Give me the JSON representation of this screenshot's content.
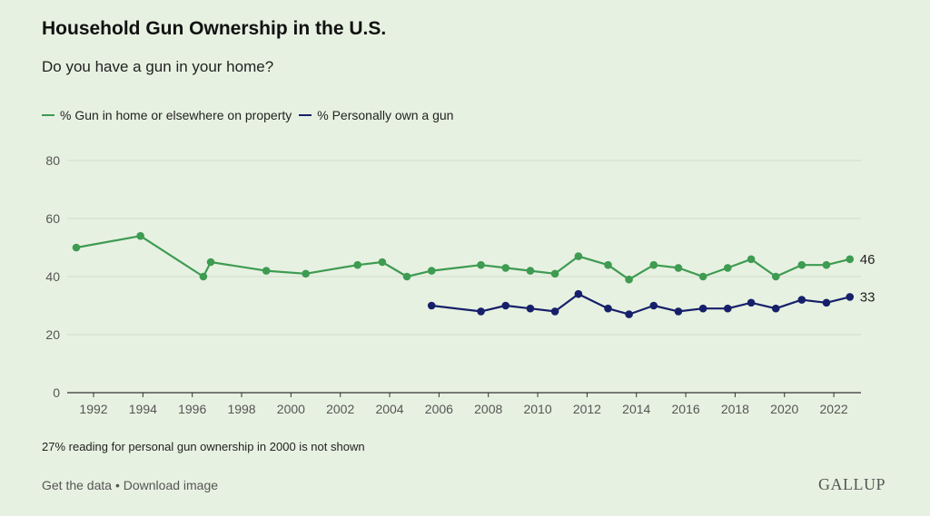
{
  "title": "Household Gun Ownership in the U.S.",
  "subtitle": "Do you have a gun in your home?",
  "note": "27% reading for personal gun ownership in 2000 is not shown",
  "footer": {
    "get_data": "Get the data",
    "separator": " • ",
    "download": "Download image"
  },
  "logo": "GALLUP",
  "chart_data": {
    "type": "line",
    "title": "Household Gun Ownership in the U.S.",
    "xlabel": "",
    "ylabel": "",
    "ylim": [
      0,
      80
    ],
    "yticks": [
      0,
      20,
      40,
      60,
      80
    ],
    "xticks": [
      1992,
      1994,
      1996,
      1998,
      2000,
      2002,
      2004,
      2006,
      2008,
      2010,
      2012,
      2014,
      2016,
      2018,
      2020,
      2022
    ],
    "grid": "horizontal",
    "legend": "top-left",
    "series": [
      {
        "name": "% Gun in home or elsewhere on property",
        "color": "#3e9b52",
        "end_label": "46",
        "x": [
          1991.3,
          1993.9,
          1996.45,
          1996.75,
          1999.0,
          2000.6,
          2002.7,
          2003.7,
          2004.7,
          2005.7,
          2007.7,
          2008.7,
          2009.7,
          2010.7,
          2011.65,
          2012.85,
          2013.7,
          2014.7,
          2015.7,
          2016.7,
          2017.7,
          2018.65,
          2019.65,
          2020.7,
          2021.7,
          2022.65
        ],
        "values": [
          50,
          54,
          40,
          45,
          42,
          41,
          44,
          45,
          40,
          42,
          44,
          43,
          42,
          41,
          47,
          44,
          39,
          44,
          43,
          40,
          43,
          46,
          40,
          44,
          44,
          46
        ]
      },
      {
        "name": "% Personally own a gun",
        "color": "#16206a",
        "end_label": "33",
        "x": [
          2005.7,
          2007.7,
          2008.7,
          2009.7,
          2010.7,
          2011.65,
          2012.85,
          2013.7,
          2014.7,
          2015.7,
          2016.7,
          2017.7,
          2018.65,
          2019.65,
          2020.7,
          2021.7,
          2022.65
        ],
        "values": [
          30,
          28,
          30,
          29,
          28,
          34,
          29,
          27,
          30,
          28,
          29,
          29,
          31,
          29,
          32,
          31,
          33
        ]
      }
    ]
  }
}
